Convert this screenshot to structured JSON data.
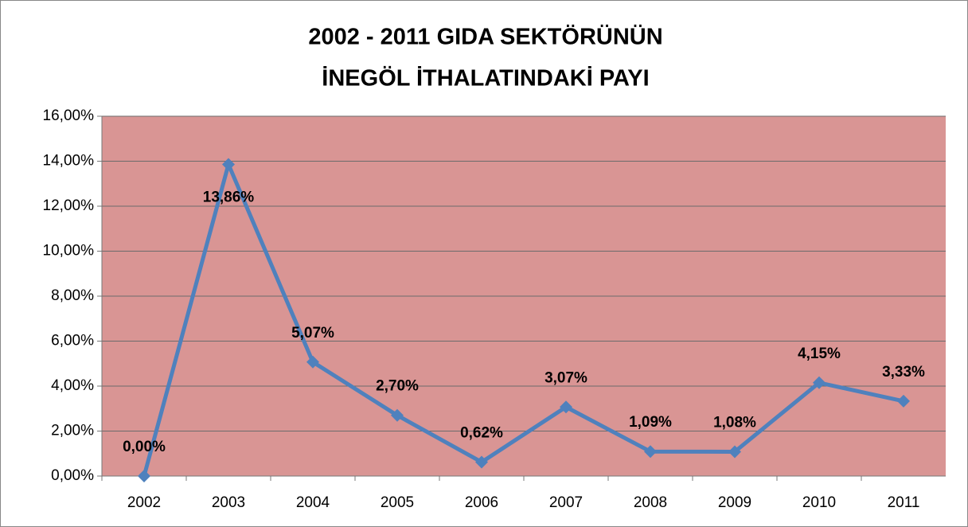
{
  "chart_data": {
    "type": "line",
    "title": [
      "2002 - 2011 GIDA SEKTÖRÜNÜN",
      "İNEGÖL İTHALATINDAKİ PAYI"
    ],
    "categories": [
      "2002",
      "2003",
      "2004",
      "2005",
      "2006",
      "2007",
      "2008",
      "2009",
      "2010",
      "2011"
    ],
    "series": [
      {
        "color": "#4f81bd",
        "values": [
          0,
          13.86,
          5.07,
          2.7,
          0.62,
          3.07,
          1.09,
          1.08,
          4.15,
          3.33
        ],
        "value_labels": [
          "0,00%",
          "13,86%",
          "5,07%",
          "2,70%",
          "0,62%",
          "3,07%",
          "1,09%",
          "1,08%",
          "4,15%",
          "3,33%"
        ]
      }
    ],
    "ylim": [
      0,
      16
    ],
    "yticks": [
      {
        "value": 0,
        "label": "0,00%"
      },
      {
        "value": 2,
        "label": "2,00%"
      },
      {
        "value": 4,
        "label": "4,00%"
      },
      {
        "value": 6,
        "label": "6,00%"
      },
      {
        "value": 8,
        "label": "8,00%"
      },
      {
        "value": 10,
        "label": "10,00%"
      },
      {
        "value": 12,
        "label": "12,00%"
      },
      {
        "value": 14,
        "label": "14,00%"
      },
      {
        "value": 16,
        "label": "16,00%"
      }
    ],
    "grid": true,
    "plot_background": "#d99594"
  }
}
